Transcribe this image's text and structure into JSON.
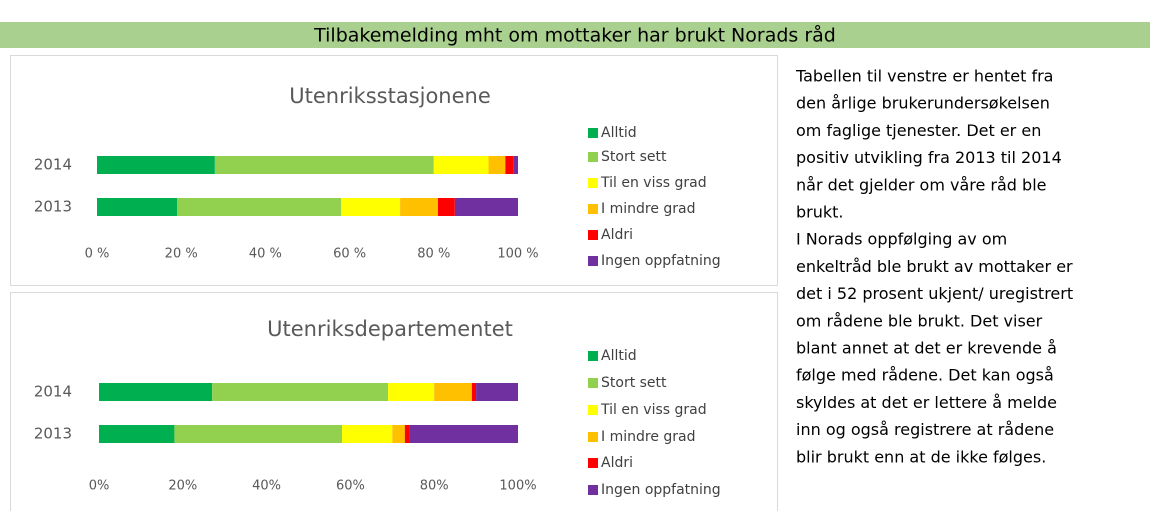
{
  "header": {
    "title": "Tilbakemelding mht om mottaker har brukt Norads råd"
  },
  "chart_data": [
    {
      "type": "bar",
      "orientation": "horizontal",
      "stacked": true,
      "title": "Utenriksstasjonene",
      "categories": [
        "2014",
        "2013"
      ],
      "series": [
        {
          "name": "Alltid",
          "color": "#00b050",
          "values": [
            28,
            19
          ]
        },
        {
          "name": "Stort sett",
          "color": "#92d050",
          "values": [
            52,
            39
          ]
        },
        {
          "name": "Til en viss grad",
          "color": "#ffff00",
          "values": [
            13,
            14
          ]
        },
        {
          "name": "I mindre grad",
          "color": "#ffc000",
          "values": [
            4,
            9
          ]
        },
        {
          "name": "Aldri",
          "color": "#ff0000",
          "values": [
            2,
            4
          ]
        },
        {
          "name": "Ingen oppfatning",
          "color": "#7030a0",
          "values": [
            1,
            15
          ]
        }
      ],
      "xlim": [
        0,
        100
      ],
      "xticks": [
        {
          "value": 0,
          "label": "0 %"
        },
        {
          "value": 20,
          "label": "20 %"
        },
        {
          "value": 40,
          "label": "40 %"
        },
        {
          "value": 60,
          "label": "60 %"
        },
        {
          "value": 80,
          "label": "80 %"
        },
        {
          "value": 100,
          "label": "100 %"
        }
      ],
      "legend": "right"
    },
    {
      "type": "bar",
      "orientation": "horizontal",
      "stacked": true,
      "title": "Utenriksdepartementet",
      "categories": [
        "2014",
        "2013"
      ],
      "series": [
        {
          "name": "Alltid",
          "color": "#00b050",
          "values": [
            27,
            18
          ]
        },
        {
          "name": "Stort sett",
          "color": "#92d050",
          "values": [
            42,
            40
          ]
        },
        {
          "name": "Til en viss grad",
          "color": "#ffff00",
          "values": [
            11,
            12
          ]
        },
        {
          "name": "I mindre grad",
          "color": "#ffc000",
          "values": [
            9,
            3
          ]
        },
        {
          "name": "Aldri",
          "color": "#ff0000",
          "values": [
            1,
            1
          ]
        },
        {
          "name": "Ingen oppfatning",
          "color": "#7030a0",
          "values": [
            10,
            26
          ]
        }
      ],
      "xlim": [
        0,
        100
      ],
      "xticks": [
        {
          "value": 0,
          "label": "0%"
        },
        {
          "value": 20,
          "label": "20%"
        },
        {
          "value": 40,
          "label": "40%"
        },
        {
          "value": 60,
          "label": "60%"
        },
        {
          "value": 80,
          "label": "80%"
        },
        {
          "value": 100,
          "label": "100%"
        }
      ],
      "legend": "right"
    }
  ],
  "text": {
    "lines": [
      "Tabellen til venstre er hentet fra",
      "den årlige brukerundersøkelsen",
      "om faglige tjenester. Det er en",
      "positiv utvikling fra 2013 til 2014",
      "når det gjelder om våre råd ble",
      "brukt.",
      "I Norads oppfølging av om",
      "enkeltråd ble brukt av mottaker er",
      "det i 52 prosent ukjent/ uregistrert",
      "om rådene ble brukt. Det viser",
      "blant annet at det er krevende å",
      "følge med rådene. Det kan også",
      "skyldes at det er lettere å melde",
      "inn og også registrere at rådene",
      "blir brukt enn at de ikke følges."
    ]
  }
}
